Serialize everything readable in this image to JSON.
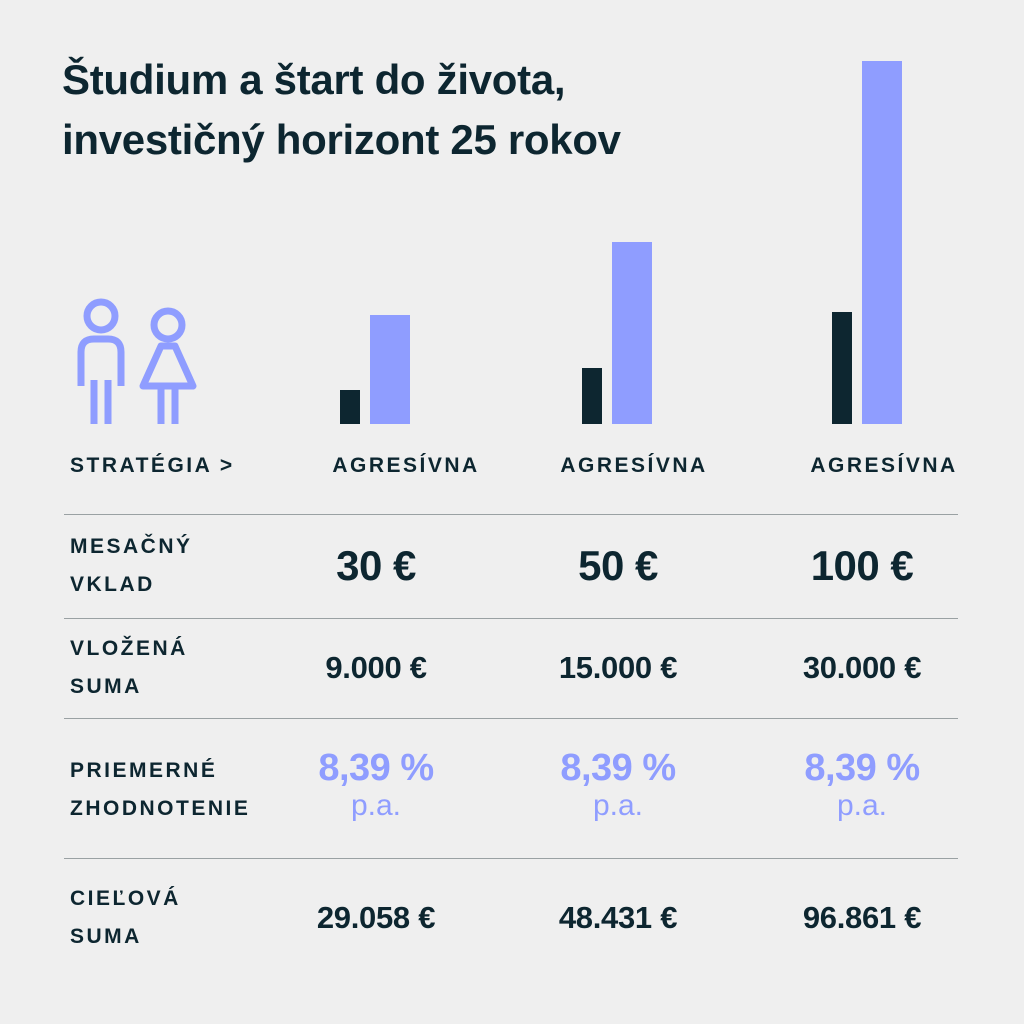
{
  "title_lines": [
    "Študium a štart do života,",
    "investičný horizont 25 rokov"
  ],
  "colors": {
    "text": "#0d2630",
    "accent": "#8f9dff",
    "divider": "#9aa1a3",
    "background": "#efefef"
  },
  "icons": [
    "boy-icon",
    "girl-icon"
  ],
  "strategy_label": "STRATÉGIA >",
  "strategies": [
    "AGRESÍVNA",
    "AGRESÍVNA",
    "AGRESÍVNA"
  ],
  "rows": {
    "monthly": {
      "label_lines": [
        "MESAČNÝ",
        "VKLAD"
      ],
      "values": [
        "30 €",
        "50 €",
        "100 €"
      ]
    },
    "deposited": {
      "label_lines": [
        "VLOŽENÁ",
        "SUMA"
      ],
      "values": [
        "9.000 €",
        "15.000 €",
        "30.000 €"
      ]
    },
    "return": {
      "label_lines": [
        "PRIEMERNÉ",
        "ZHODNOTENIE"
      ],
      "values": [
        "8,39 %",
        "8,39 %",
        "8,39 %"
      ],
      "unit": "p.a."
    },
    "target": {
      "label_lines": [
        "CIEĽOVÁ",
        "SUMA"
      ],
      "values": [
        "29.058 €",
        "48.431 €",
        "96.861 €"
      ]
    }
  },
  "chart_data": {
    "type": "bar",
    "categories": [
      "30 €",
      "50 €",
      "100 €"
    ],
    "series": [
      {
        "values": [
          9000,
          15000,
          30000
        ],
        "color": "#0d2630"
      },
      {
        "values": [
          29058,
          48431,
          96861
        ],
        "color": "#8f9dff"
      }
    ],
    "ylim": [
      0,
      96861
    ],
    "grid": false
  }
}
